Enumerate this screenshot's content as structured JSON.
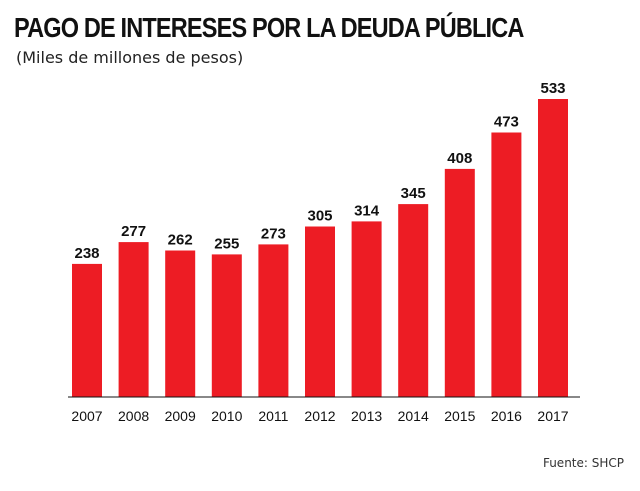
{
  "header": {
    "title": "PAGO DE INTERESES POR LA DEUDA PÚBLICA",
    "subtitle": "(Miles de millones de pesos)"
  },
  "footer": {
    "source": "Fuente: SHCP"
  },
  "colors": {
    "bar": "#ed1c24",
    "text": "#111111"
  },
  "chart_data": {
    "type": "bar",
    "title": "PAGO DE INTERESES POR LA DEUDA PÚBLICA",
    "subtitle": "(Miles de millones de pesos)",
    "categories": [
      "2007",
      "2008",
      "2009",
      "2010",
      "2011",
      "2012",
      "2013",
      "2014",
      "2015",
      "2016",
      "2017"
    ],
    "values": [
      238,
      277,
      262,
      255,
      273,
      305,
      314,
      345,
      408,
      473,
      533
    ],
    "xlabel": "",
    "ylabel": "",
    "ylim": [
      0,
      533
    ],
    "grid": false,
    "legend": "none"
  }
}
